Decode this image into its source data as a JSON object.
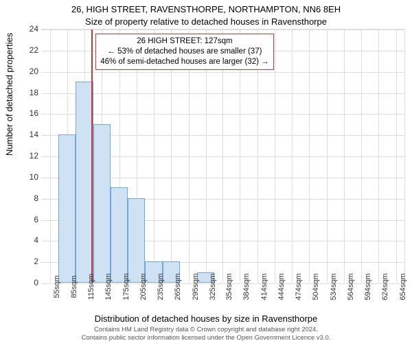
{
  "title1": "26, HIGH STREET, RAVENSTHORPE, NORTHAMPTON, NN6 8EH",
  "title2": "Size of property relative to detached houses in Ravensthorpe",
  "yaxis_label": "Number of detached properties",
  "xaxis_label": "Distribution of detached houses by size in Ravensthorpe",
  "footer1": "Contains HM Land Registry data © Crown copyright and database right 2024.",
  "footer2": "Contains public sector information licensed under the Open Government Licence v3.0.",
  "chart": {
    "type": "histogram",
    "background_color": "#ffffff",
    "grid_color": "#dddddd",
    "bar_fill": "#cfe2f3",
    "bar_border": "#6fa8dc",
    "marker_line_color": "#d33333",
    "annotation_border": "#d33333",
    "ymin": 0,
    "ymax": 24,
    "ytick_step": 2,
    "yticks": [
      0,
      2,
      4,
      6,
      8,
      10,
      12,
      14,
      16,
      18,
      20,
      22,
      24
    ],
    "xmin": 40,
    "xmax": 670,
    "xticks": [
      55,
      85,
      115,
      145,
      175,
      205,
      235,
      265,
      295,
      325,
      354,
      384,
      414,
      444,
      474,
      504,
      534,
      564,
      594,
      624,
      654
    ],
    "xtick_labels": [
      "55sqm",
      "85sqm",
      "115sqm",
      "145sqm",
      "175sqm",
      "205sqm",
      "235sqm",
      "265sqm",
      "295sqm",
      "325sqm",
      "354sqm",
      "384sqm",
      "414sqm",
      "444sqm",
      "474sqm",
      "504sqm",
      "534sqm",
      "564sqm",
      "594sqm",
      "624sqm",
      "654sqm"
    ],
    "bins": [
      {
        "xstart": 40,
        "xend": 70,
        "value": 0
      },
      {
        "xstart": 70,
        "xend": 100,
        "value": 14
      },
      {
        "xstart": 100,
        "xend": 130,
        "value": 19
      },
      {
        "xstart": 130,
        "xend": 160,
        "value": 15
      },
      {
        "xstart": 160,
        "xend": 190,
        "value": 9
      },
      {
        "xstart": 190,
        "xend": 220,
        "value": 8
      },
      {
        "xstart": 220,
        "xend": 250,
        "value": 2
      },
      {
        "xstart": 250,
        "xend": 280,
        "value": 2
      },
      {
        "xstart": 280,
        "xend": 310,
        "value": 0
      },
      {
        "xstart": 310,
        "xend": 340,
        "value": 1
      },
      {
        "xstart": 340,
        "xend": 370,
        "value": 0
      },
      {
        "xstart": 370,
        "xend": 400,
        "value": 0
      },
      {
        "xstart": 400,
        "xend": 430,
        "value": 0
      },
      {
        "xstart": 430,
        "xend": 460,
        "value": 0
      },
      {
        "xstart": 460,
        "xend": 490,
        "value": 0
      },
      {
        "xstart": 490,
        "xend": 520,
        "value": 0
      },
      {
        "xstart": 520,
        "xend": 550,
        "value": 0
      },
      {
        "xstart": 550,
        "xend": 580,
        "value": 0
      },
      {
        "xstart": 580,
        "xend": 610,
        "value": 0
      },
      {
        "xstart": 610,
        "xend": 640,
        "value": 0
      },
      {
        "xstart": 640,
        "xend": 670,
        "value": 0
      }
    ],
    "marker_x": 127,
    "annotation": {
      "line1": "26 HIGH STREET: 127sqm",
      "line2": "← 53% of detached houses are smaller (37)",
      "line3": "46% of semi-detached houses are larger (32) →"
    },
    "title_fontsize": 13,
    "label_fontsize": 13,
    "tick_fontsize": 12,
    "xtick_fontsize": 11,
    "footer_fontsize": 9.5
  }
}
